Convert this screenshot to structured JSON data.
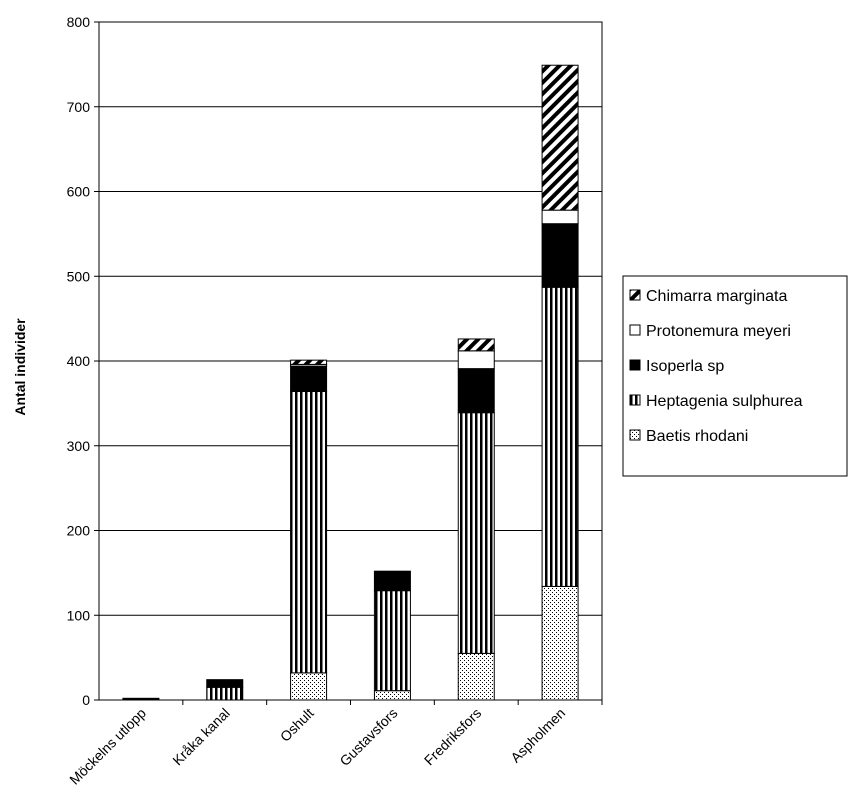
{
  "chart_data": {
    "type": "bar",
    "stacked": true,
    "categories": [
      "Möckelns utlopp",
      "Kråka kanal",
      "Oshult",
      "Gustavsfors",
      "Fredriksfors",
      "Aspholmen"
    ],
    "series": [
      {
        "name": "Baetis rhodani",
        "pattern": "dots",
        "values": [
          0,
          0,
          32,
          11,
          55,
          134
        ]
      },
      {
        "name": "Heptagenia sulphurea",
        "pattern": "vertical-stripes",
        "values": [
          0,
          15,
          332,
          118,
          284,
          353
        ]
      },
      {
        "name": "Isoperla sp",
        "pattern": "solid-black",
        "values": [
          2,
          9,
          30,
          23,
          52,
          75
        ]
      },
      {
        "name": "Protonemura meyeri",
        "pattern": "white",
        "values": [
          0,
          0,
          2,
          0,
          21,
          16
        ]
      },
      {
        "name": "Chimarra marginata",
        "pattern": "diagonal-stripes",
        "values": [
          0,
          0,
          5,
          0,
          14,
          171
        ]
      }
    ],
    "legend_order": [
      "Chimarra marginata",
      "Protonemura meyeri",
      "Isoperla sp",
      "Heptagenia sulphurea",
      "Baetis rhodani"
    ],
    "ylabel": "Antal individer",
    "xlabel": "",
    "ylim": [
      0,
      800
    ],
    "yticks": [
      0,
      100,
      200,
      300,
      400,
      500,
      600,
      700,
      800
    ],
    "grid": true,
    "legend_position": "right"
  }
}
